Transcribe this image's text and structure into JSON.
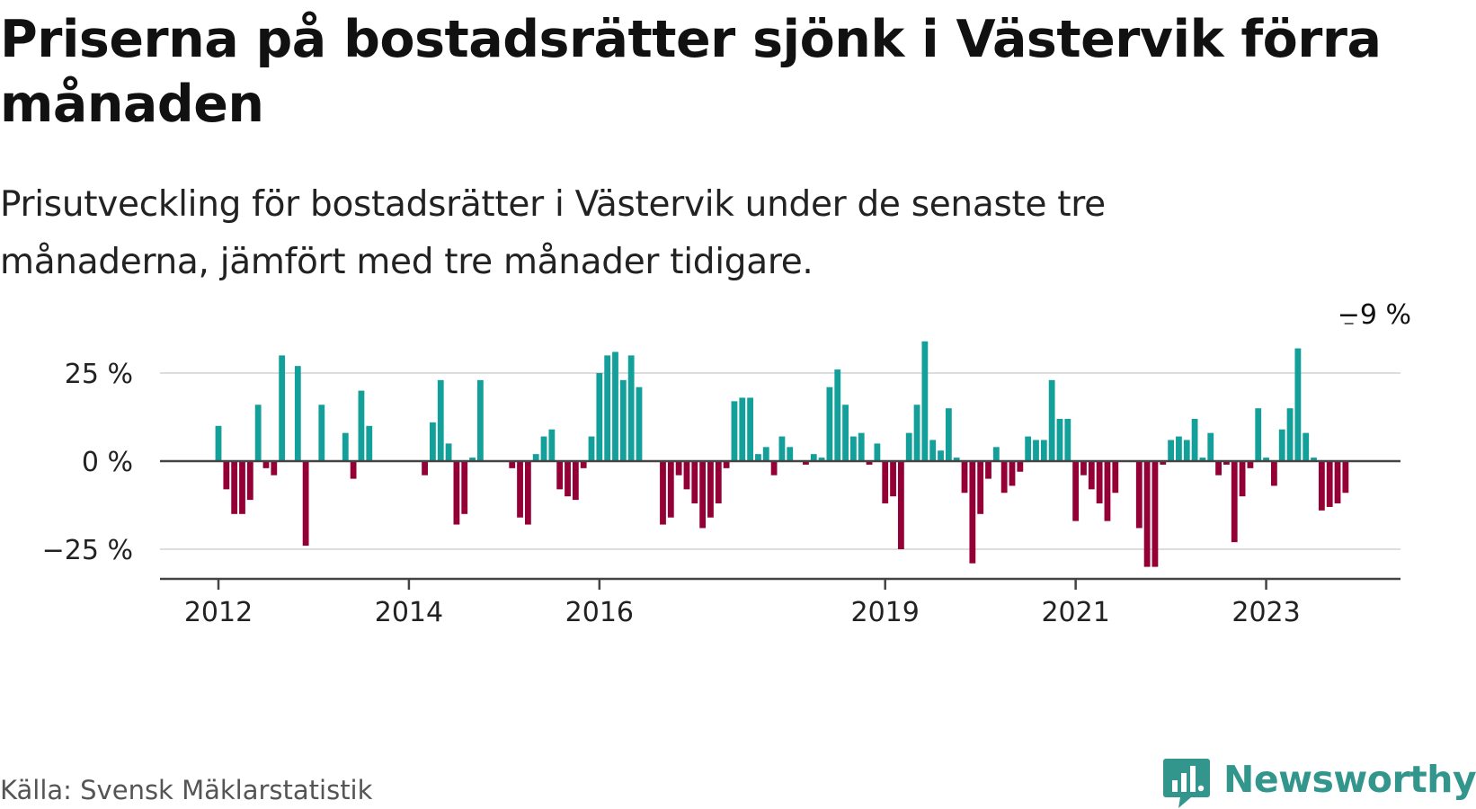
{
  "title": "Priserna på bostadsrätter sjönk i Västervik förra månaden",
  "subtitle": "Prisutveckling för bostadsrätter i Västervik under de senaste tre månaderna, jämfört med tre månader tidigare.",
  "source": "Källa: Svensk Mäklarstatistik",
  "brand": {
    "name": "Newsworthy",
    "icon": "newsworthy-logo-icon"
  },
  "colors": {
    "positive": "#14a09a",
    "negative": "#940035",
    "axis": "#444444",
    "grid": "#dddddd",
    "text": "#222222"
  },
  "chart_data": {
    "type": "bar",
    "title": "Priserna på bostadsrätter sjönk i Västervik förra månaden",
    "ylabel": "",
    "xlabel": "",
    "ylim": [
      -35,
      35
    ],
    "yticks": [
      {
        "value": 25,
        "label": "25 %"
      },
      {
        "value": 0,
        "label": "0 %"
      },
      {
        "value": -25,
        "label": "−25 %"
      }
    ],
    "xticks": [
      {
        "index": 0,
        "label": "2012"
      },
      {
        "index": 24,
        "label": "2014"
      },
      {
        "index": 48,
        "label": "2016"
      },
      {
        "index": 84,
        "label": "2019"
      },
      {
        "index": 108,
        "label": "2021"
      },
      {
        "index": 132,
        "label": "2023"
      }
    ],
    "start": "2012-01",
    "annotation": {
      "index": 143,
      "label": "−9 %"
    },
    "values": [
      10,
      -8,
      -15,
      -15,
      -11,
      16,
      -2,
      -4,
      30,
      null,
      27,
      -24,
      null,
      16,
      null,
      null,
      8,
      -5,
      20,
      10,
      null,
      null,
      null,
      null,
      null,
      null,
      -4,
      11,
      23,
      5,
      -18,
      -15,
      1,
      23,
      null,
      null,
      null,
      -2,
      -16,
      -18,
      2,
      7,
      9,
      -8,
      -10,
      -11,
      -2,
      7,
      25,
      30,
      31,
      23,
      30,
      21,
      null,
      null,
      -18,
      -16,
      -4,
      -8,
      -12,
      -19,
      -16,
      -12,
      -2,
      17,
      18,
      18,
      2,
      4,
      -4,
      7,
      4,
      null,
      -1,
      2,
      1,
      21,
      26,
      16,
      7,
      8,
      -1,
      5,
      -12,
      -10,
      -25,
      8,
      16,
      34,
      6,
      3,
      15,
      1,
      -9,
      -29,
      -15,
      -5,
      4,
      -9,
      -7,
      -3,
      7,
      6,
      6,
      23,
      12,
      12,
      -17,
      -4,
      -8,
      -12,
      -17,
      -9,
      null,
      null,
      -19,
      -30,
      -30,
      -1,
      6,
      7,
      6,
      12,
      1,
      8,
      -4,
      -1,
      -23,
      -10,
      -2,
      15,
      1,
      -7,
      9,
      15,
      32,
      8,
      1,
      -14,
      -13,
      -12,
      -9
    ]
  }
}
